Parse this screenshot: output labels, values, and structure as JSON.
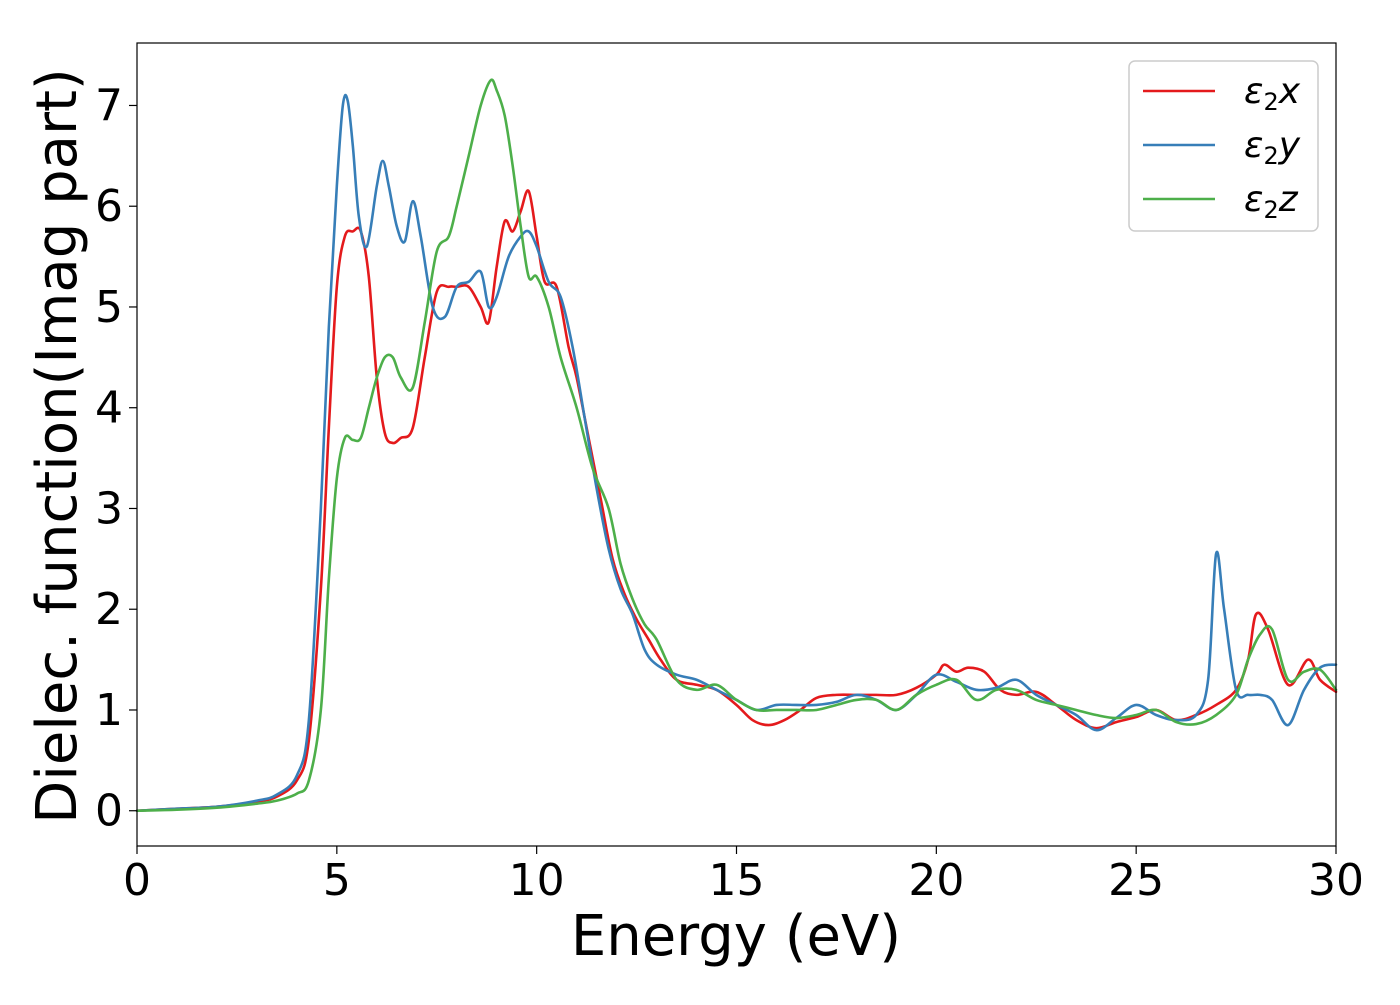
{
  "chart_data": {
    "type": "line",
    "title": "",
    "xlabel": "Energy (eV)",
    "ylabel": "Dielec. function(Imag part)",
    "xlim": [
      0,
      30
    ],
    "ylim": [
      -0.35,
      7.62
    ],
    "xticks": [
      0,
      5,
      10,
      15,
      20,
      25,
      30
    ],
    "yticks": [
      0,
      1,
      2,
      3,
      4,
      5,
      6,
      7
    ],
    "grid": false,
    "legend_position": "top-right",
    "series": [
      {
        "name": "ε₂x",
        "legend_base": "ε",
        "legend_sub": "2",
        "legend_var": "x",
        "color": "#e41a1c",
        "x": [
          0,
          1,
          2,
          3,
          3.5,
          4,
          4.3,
          4.6,
          4.8,
          5,
          5.2,
          5.4,
          5.6,
          5.8,
          6,
          6.2,
          6.4,
          6.6,
          6.9,
          7.2,
          7.5,
          7.8,
          8,
          8.3,
          8.6,
          8.8,
          9,
          9.2,
          9.4,
          9.6,
          9.8,
          10,
          10.2,
          10.5,
          10.8,
          11,
          11.3,
          11.6,
          11.9,
          12.2,
          12.5,
          12.8,
          13.1,
          13.5,
          14,
          14.5,
          15,
          15.4,
          15.8,
          16.2,
          16.6,
          17,
          17.5,
          18,
          18.5,
          19,
          19.5,
          20,
          20.2,
          20.5,
          20.8,
          21.2,
          21.6,
          22,
          22.5,
          23,
          23.5,
          24,
          24.5,
          25,
          25.5,
          26,
          26.5,
          27,
          27.5,
          27.8,
          28,
          28.3,
          28.8,
          29.3,
          29.6,
          30
        ],
        "y": [
          0,
          0.02,
          0.04,
          0.09,
          0.14,
          0.3,
          0.7,
          2.2,
          3.8,
          5.2,
          5.7,
          5.75,
          5.75,
          5.3,
          4.3,
          3.75,
          3.65,
          3.7,
          3.8,
          4.5,
          5.15,
          5.2,
          5.2,
          5.2,
          5.0,
          4.85,
          5.4,
          5.85,
          5.75,
          5.95,
          6.15,
          5.7,
          5.25,
          5.2,
          4.6,
          4.3,
          3.7,
          3.1,
          2.5,
          2.15,
          1.9,
          1.7,
          1.5,
          1.3,
          1.25,
          1.2,
          1.05,
          0.9,
          0.85,
          0.9,
          1.0,
          1.12,
          1.15,
          1.15,
          1.15,
          1.15,
          1.22,
          1.35,
          1.45,
          1.38,
          1.42,
          1.38,
          1.2,
          1.15,
          1.18,
          1.05,
          0.9,
          0.82,
          0.88,
          0.93,
          1.0,
          0.9,
          0.95,
          1.05,
          1.2,
          1.5,
          1.95,
          1.8,
          1.25,
          1.5,
          1.3,
          1.18
        ]
      },
      {
        "name": "ε₂y",
        "legend_base": "ε",
        "legend_sub": "2",
        "legend_var": "y",
        "color": "#377eb8",
        "x": [
          0,
          1,
          2,
          3,
          3.5,
          4,
          4.3,
          4.6,
          4.8,
          5,
          5.15,
          5.27,
          5.4,
          5.55,
          5.75,
          6,
          6.15,
          6.3,
          6.5,
          6.7,
          6.9,
          7.1,
          7.4,
          7.7,
          8,
          8.3,
          8.6,
          8.8,
          9,
          9.3,
          9.6,
          9.8,
          10,
          10.3,
          10.6,
          10.9,
          11.2,
          11.5,
          11.8,
          12.1,
          12.4,
          12.7,
          13,
          13.5,
          14,
          14.5,
          15,
          15.5,
          16,
          16.5,
          17,
          17.5,
          18,
          18.5,
          19,
          19.5,
          20,
          20.5,
          21,
          21.5,
          22,
          22.5,
          23,
          23.5,
          24,
          24.5,
          25,
          25.5,
          26,
          26.5,
          26.8,
          27,
          27.2,
          27.5,
          27.8,
          28.1,
          28.4,
          28.8,
          29.2,
          29.6,
          30
        ],
        "y": [
          0,
          0.02,
          0.04,
          0.1,
          0.16,
          0.35,
          0.9,
          3.0,
          4.8,
          6.2,
          7.0,
          7.05,
          6.6,
          5.9,
          5.6,
          6.2,
          6.45,
          6.2,
          5.8,
          5.65,
          6.05,
          5.7,
          5.0,
          4.9,
          5.2,
          5.25,
          5.35,
          5.0,
          5.1,
          5.5,
          5.7,
          5.75,
          5.6,
          5.25,
          5.1,
          4.6,
          3.9,
          3.2,
          2.6,
          2.2,
          1.95,
          1.6,
          1.45,
          1.35,
          1.3,
          1.2,
          1.1,
          1.0,
          1.05,
          1.05,
          1.05,
          1.08,
          1.15,
          1.1,
          1.0,
          1.15,
          1.35,
          1.28,
          1.2,
          1.22,
          1.3,
          1.15,
          1.05,
          0.95,
          0.8,
          0.92,
          1.05,
          0.95,
          0.9,
          0.95,
          1.3,
          2.55,
          2.0,
          1.2,
          1.15,
          1.15,
          1.1,
          0.85,
          1.2,
          1.42,
          1.45
        ]
      },
      {
        "name": "ε₂z",
        "legend_base": "ε",
        "legend_sub": "2",
        "legend_var": "z",
        "color": "#4daf4a",
        "x": [
          0,
          1,
          2,
          3,
          3.5,
          4,
          4.3,
          4.6,
          4.8,
          5,
          5.2,
          5.4,
          5.6,
          5.8,
          6,
          6.2,
          6.4,
          6.6,
          6.9,
          7.2,
          7.5,
          7.8,
          8,
          8.3,
          8.6,
          8.85,
          9,
          9.2,
          9.4,
          9.6,
          9.8,
          10,
          10.3,
          10.6,
          11,
          11.4,
          11.8,
          12.1,
          12.4,
          12.7,
          13,
          13.5,
          14,
          14.5,
          15,
          15.5,
          16,
          16.5,
          17,
          17.5,
          18,
          18.5,
          19,
          19.5,
          20,
          20.5,
          21,
          21.5,
          22,
          22.5,
          23,
          23.5,
          24,
          24.5,
          25,
          25.5,
          26,
          26.5,
          27,
          27.5,
          27.8,
          28.1,
          28.4,
          28.8,
          29.2,
          29.6,
          30
        ],
        "y": [
          0,
          0.01,
          0.03,
          0.07,
          0.1,
          0.17,
          0.3,
          1.0,
          2.3,
          3.3,
          3.7,
          3.68,
          3.7,
          4.0,
          4.3,
          4.5,
          4.5,
          4.3,
          4.2,
          4.85,
          5.55,
          5.7,
          6.0,
          6.5,
          7.0,
          7.25,
          7.15,
          6.9,
          6.4,
          5.8,
          5.3,
          5.3,
          5.0,
          4.5,
          4.0,
          3.4,
          3.0,
          2.45,
          2.1,
          1.85,
          1.7,
          1.3,
          1.2,
          1.25,
          1.1,
          1.0,
          1.0,
          1.0,
          1.0,
          1.05,
          1.1,
          1.1,
          1.0,
          1.15,
          1.25,
          1.3,
          1.1,
          1.2,
          1.2,
          1.1,
          1.05,
          1.0,
          0.95,
          0.92,
          0.95,
          1.0,
          0.88,
          0.86,
          0.95,
          1.15,
          1.5,
          1.75,
          1.8,
          1.3,
          1.38,
          1.4,
          1.2
        ]
      }
    ]
  }
}
